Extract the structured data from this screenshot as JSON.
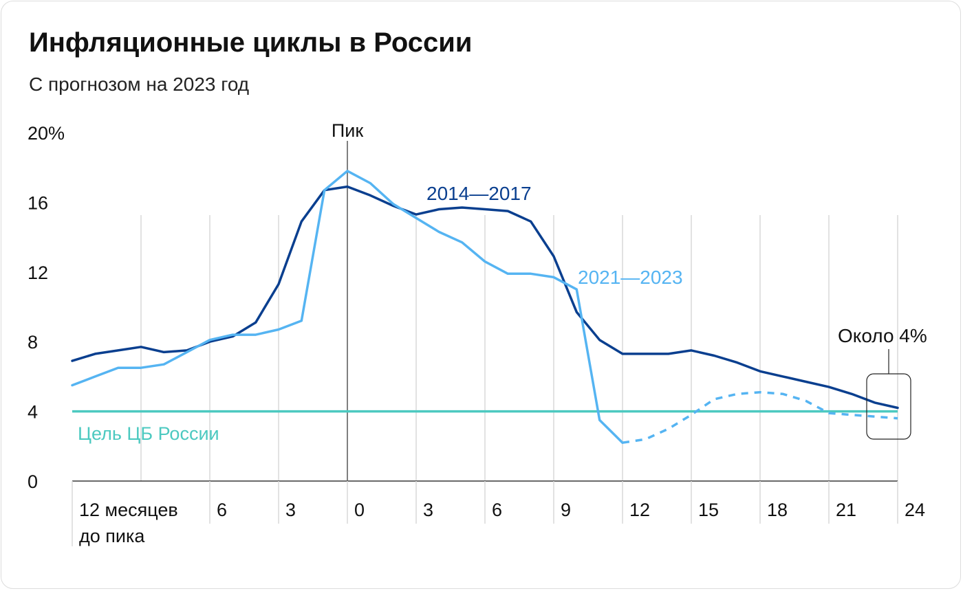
{
  "header": {
    "title": "Инфляционные циклы в России",
    "subtitle": "С прогнозом на 2023 год"
  },
  "chart_data": {
    "type": "line",
    "title": "Инфляционные циклы в России",
    "subtitle": "С прогнозом на 2023 год",
    "xlabel": "",
    "ylabel": "",
    "xlim": [
      -12,
      24
    ],
    "ylim": [
      0,
      20
    ],
    "y_ticks": [
      {
        "value": 0,
        "label": "0"
      },
      {
        "value": 4,
        "label": "4"
      },
      {
        "value": 8,
        "label": "8"
      },
      {
        "value": 12,
        "label": "12"
      },
      {
        "value": 16,
        "label": "16"
      },
      {
        "value": 20,
        "label": "20%"
      }
    ],
    "x_ticks": [
      {
        "value": -12,
        "label": "12 месяцев",
        "label2": "до пика"
      },
      {
        "value": -6,
        "label": "6"
      },
      {
        "value": -3,
        "label": "3"
      },
      {
        "value": 0,
        "label": "0"
      },
      {
        "value": 3,
        "label": "3"
      },
      {
        "value": 6,
        "label": "6"
      },
      {
        "value": 9,
        "label": "9"
      },
      {
        "value": 12,
        "label": "12"
      },
      {
        "value": 15,
        "label": "15"
      },
      {
        "value": 18,
        "label": "18"
      },
      {
        "value": 21,
        "label": "21"
      },
      {
        "value": 24,
        "label": "24"
      }
    ],
    "x_gridlines": [
      -9,
      -6,
      -3,
      3,
      6,
      9,
      12,
      15,
      18,
      21,
      24
    ],
    "grid": "vertical",
    "peak_line": {
      "x": 0,
      "label": "Пик"
    },
    "target": {
      "value": 4,
      "label": "Цель ЦБ России",
      "color": "#4cc9c0"
    },
    "series": [
      {
        "name": "2014—2017",
        "color": "#0a3f8f",
        "x": [
          -12,
          -11,
          -10,
          -9,
          -8,
          -7,
          -6,
          -5,
          -4,
          -3,
          -2,
          -1,
          0,
          1,
          2,
          3,
          4,
          5,
          6,
          7,
          8,
          9,
          10,
          11,
          12,
          13,
          14,
          15,
          16,
          17,
          18,
          19,
          20,
          21,
          22,
          23,
          24
        ],
        "values": [
          6.9,
          7.3,
          7.5,
          7.7,
          7.4,
          7.5,
          8.0,
          8.3,
          9.1,
          11.3,
          14.9,
          16.7,
          16.9,
          16.4,
          15.8,
          15.3,
          15.6,
          15.7,
          15.6,
          15.5,
          14.9,
          12.9,
          9.7,
          8.1,
          7.3,
          7.3,
          7.3,
          7.5,
          7.2,
          6.8,
          6.3,
          6.0,
          5.7,
          5.4,
          5.0,
          4.5,
          4.2
        ]
      },
      {
        "name": "2021—2023",
        "color": "#55b4f2",
        "actual_x": [
          -12,
          -11,
          -10,
          -9,
          -8,
          -7,
          -6,
          -5,
          -4,
          -3,
          -2,
          -1,
          0,
          1,
          2,
          3,
          4,
          5,
          6,
          7,
          8,
          9,
          10,
          11,
          12
        ],
        "actual_values": [
          5.5,
          6.0,
          6.5,
          6.5,
          6.7,
          7.4,
          8.1,
          8.4,
          8.4,
          8.7,
          9.2,
          16.7,
          17.8,
          17.1,
          15.9,
          15.1,
          14.3,
          13.7,
          12.6,
          11.9,
          11.9,
          11.7,
          11.0,
          3.5,
          2.2
        ],
        "forecast_x": [
          12,
          13,
          14,
          15,
          16,
          17,
          18,
          19,
          20,
          21,
          22,
          23,
          24
        ],
        "forecast_values": [
          2.2,
          2.4,
          3.0,
          3.8,
          4.7,
          5.0,
          5.1,
          5.0,
          4.6,
          3.9,
          3.8,
          3.7,
          3.6
        ]
      }
    ],
    "annotations": [
      {
        "text": "2014—2017",
        "series": "2014—2017"
      },
      {
        "text": "2021—2023",
        "series": "2021—2023"
      },
      {
        "text": "Около 4%",
        "x": 24
      }
    ],
    "colors": {
      "axis": "#111111",
      "grid": "#d9d9d9",
      "text": "#111111"
    }
  }
}
